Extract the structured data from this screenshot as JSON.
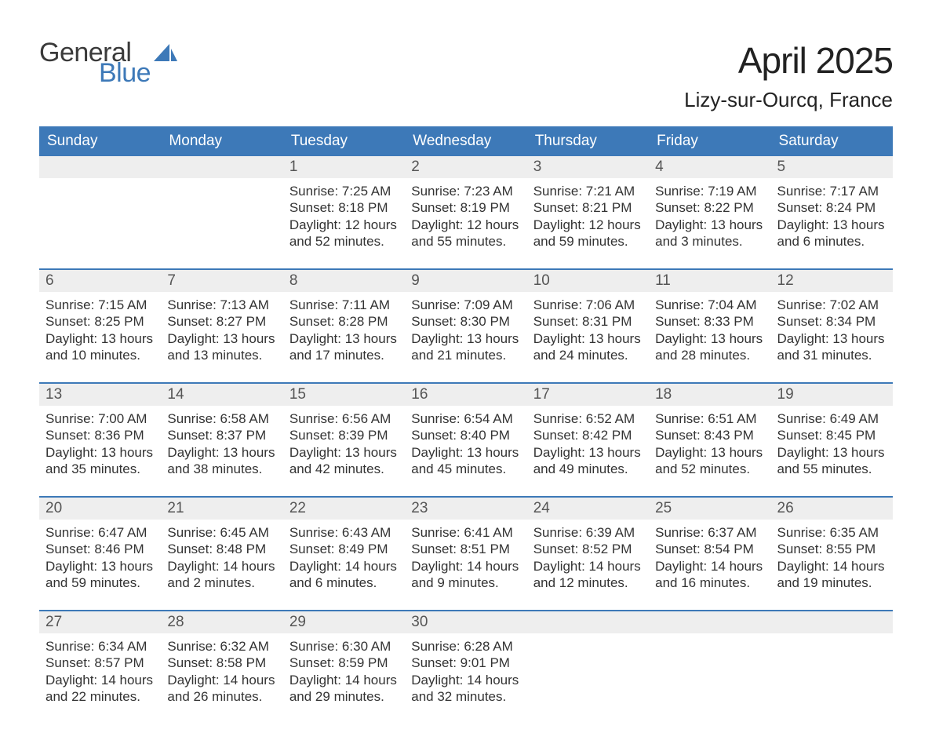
{
  "logo": {
    "word1": "General",
    "word2": "Blue",
    "accent_color": "#3d79b8",
    "text_color": "#3a3a3a"
  },
  "title": "April 2025",
  "location": "Lizy-sur-Ourcq, France",
  "colors": {
    "header_bg": "#3d79b8",
    "header_text": "#ffffff",
    "daynum_bg": "#eeeeee",
    "daynum_text": "#555555",
    "body_text": "#333333",
    "divider": "#3d79b8",
    "page_bg": "#ffffff"
  },
  "typography": {
    "title_fontsize": 46,
    "location_fontsize": 26,
    "dow_fontsize": 19,
    "daynum_fontsize": 19,
    "detail_fontsize": 17
  },
  "days_of_week": [
    "Sunday",
    "Monday",
    "Tuesday",
    "Wednesday",
    "Thursday",
    "Friday",
    "Saturday"
  ],
  "weeks": [
    [
      {
        "num": "",
        "lines": []
      },
      {
        "num": "",
        "lines": []
      },
      {
        "num": "1",
        "lines": [
          "Sunrise: 7:25 AM",
          "Sunset: 8:18 PM",
          "Daylight: 12 hours and 52 minutes."
        ]
      },
      {
        "num": "2",
        "lines": [
          "Sunrise: 7:23 AM",
          "Sunset: 8:19 PM",
          "Daylight: 12 hours and 55 minutes."
        ]
      },
      {
        "num": "3",
        "lines": [
          "Sunrise: 7:21 AM",
          "Sunset: 8:21 PM",
          "Daylight: 12 hours and 59 minutes."
        ]
      },
      {
        "num": "4",
        "lines": [
          "Sunrise: 7:19 AM",
          "Sunset: 8:22 PM",
          "Daylight: 13 hours and 3 minutes."
        ]
      },
      {
        "num": "5",
        "lines": [
          "Sunrise: 7:17 AM",
          "Sunset: 8:24 PM",
          "Daylight: 13 hours and 6 minutes."
        ]
      }
    ],
    [
      {
        "num": "6",
        "lines": [
          "Sunrise: 7:15 AM",
          "Sunset: 8:25 PM",
          "Daylight: 13 hours and 10 minutes."
        ]
      },
      {
        "num": "7",
        "lines": [
          "Sunrise: 7:13 AM",
          "Sunset: 8:27 PM",
          "Daylight: 13 hours and 13 minutes."
        ]
      },
      {
        "num": "8",
        "lines": [
          "Sunrise: 7:11 AM",
          "Sunset: 8:28 PM",
          "Daylight: 13 hours and 17 minutes."
        ]
      },
      {
        "num": "9",
        "lines": [
          "Sunrise: 7:09 AM",
          "Sunset: 8:30 PM",
          "Daylight: 13 hours and 21 minutes."
        ]
      },
      {
        "num": "10",
        "lines": [
          "Sunrise: 7:06 AM",
          "Sunset: 8:31 PM",
          "Daylight: 13 hours and 24 minutes."
        ]
      },
      {
        "num": "11",
        "lines": [
          "Sunrise: 7:04 AM",
          "Sunset: 8:33 PM",
          "Daylight: 13 hours and 28 minutes."
        ]
      },
      {
        "num": "12",
        "lines": [
          "Sunrise: 7:02 AM",
          "Sunset: 8:34 PM",
          "Daylight: 13 hours and 31 minutes."
        ]
      }
    ],
    [
      {
        "num": "13",
        "lines": [
          "Sunrise: 7:00 AM",
          "Sunset: 8:36 PM",
          "Daylight: 13 hours and 35 minutes."
        ]
      },
      {
        "num": "14",
        "lines": [
          "Sunrise: 6:58 AM",
          "Sunset: 8:37 PM",
          "Daylight: 13 hours and 38 minutes."
        ]
      },
      {
        "num": "15",
        "lines": [
          "Sunrise: 6:56 AM",
          "Sunset: 8:39 PM",
          "Daylight: 13 hours and 42 minutes."
        ]
      },
      {
        "num": "16",
        "lines": [
          "Sunrise: 6:54 AM",
          "Sunset: 8:40 PM",
          "Daylight: 13 hours and 45 minutes."
        ]
      },
      {
        "num": "17",
        "lines": [
          "Sunrise: 6:52 AM",
          "Sunset: 8:42 PM",
          "Daylight: 13 hours and 49 minutes."
        ]
      },
      {
        "num": "18",
        "lines": [
          "Sunrise: 6:51 AM",
          "Sunset: 8:43 PM",
          "Daylight: 13 hours and 52 minutes."
        ]
      },
      {
        "num": "19",
        "lines": [
          "Sunrise: 6:49 AM",
          "Sunset: 8:45 PM",
          "Daylight: 13 hours and 55 minutes."
        ]
      }
    ],
    [
      {
        "num": "20",
        "lines": [
          "Sunrise: 6:47 AM",
          "Sunset: 8:46 PM",
          "Daylight: 13 hours and 59 minutes."
        ]
      },
      {
        "num": "21",
        "lines": [
          "Sunrise: 6:45 AM",
          "Sunset: 8:48 PM",
          "Daylight: 14 hours and 2 minutes."
        ]
      },
      {
        "num": "22",
        "lines": [
          "Sunrise: 6:43 AM",
          "Sunset: 8:49 PM",
          "Daylight: 14 hours and 6 minutes."
        ]
      },
      {
        "num": "23",
        "lines": [
          "Sunrise: 6:41 AM",
          "Sunset: 8:51 PM",
          "Daylight: 14 hours and 9 minutes."
        ]
      },
      {
        "num": "24",
        "lines": [
          "Sunrise: 6:39 AM",
          "Sunset: 8:52 PM",
          "Daylight: 14 hours and 12 minutes."
        ]
      },
      {
        "num": "25",
        "lines": [
          "Sunrise: 6:37 AM",
          "Sunset: 8:54 PM",
          "Daylight: 14 hours and 16 minutes."
        ]
      },
      {
        "num": "26",
        "lines": [
          "Sunrise: 6:35 AM",
          "Sunset: 8:55 PM",
          "Daylight: 14 hours and 19 minutes."
        ]
      }
    ],
    [
      {
        "num": "27",
        "lines": [
          "Sunrise: 6:34 AM",
          "Sunset: 8:57 PM",
          "Daylight: 14 hours and 22 minutes."
        ]
      },
      {
        "num": "28",
        "lines": [
          "Sunrise: 6:32 AM",
          "Sunset: 8:58 PM",
          "Daylight: 14 hours and 26 minutes."
        ]
      },
      {
        "num": "29",
        "lines": [
          "Sunrise: 6:30 AM",
          "Sunset: 8:59 PM",
          "Daylight: 14 hours and 29 minutes."
        ]
      },
      {
        "num": "30",
        "lines": [
          "Sunrise: 6:28 AM",
          "Sunset: 9:01 PM",
          "Daylight: 14 hours and 32 minutes."
        ]
      },
      {
        "num": "",
        "lines": []
      },
      {
        "num": "",
        "lines": []
      },
      {
        "num": "",
        "lines": []
      }
    ]
  ]
}
